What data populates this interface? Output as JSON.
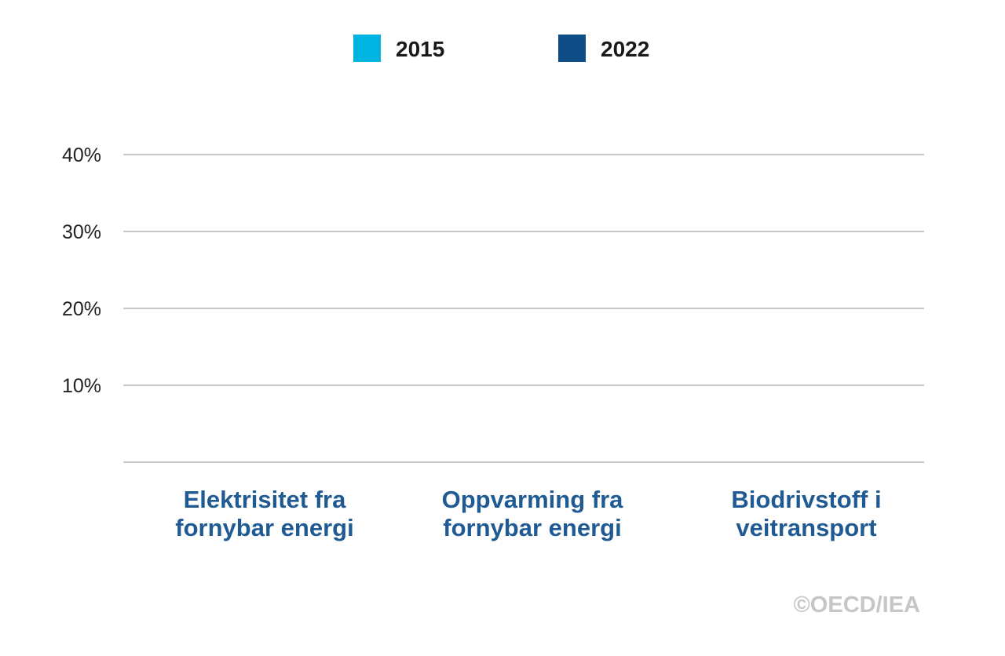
{
  "chart_data": {
    "type": "bar",
    "series": [
      {
        "name": "2015",
        "color": "#00b3e0",
        "values": [
          null,
          null,
          null
        ]
      },
      {
        "name": "2022",
        "color": "#0f4d86",
        "values": [
          null,
          null,
          null
        ]
      }
    ],
    "categories": [
      [
        "Elektrisitet fra",
        "fornybar energi"
      ],
      [
        "Oppvarming fra",
        "fornybar energi"
      ],
      [
        "Biodrivstoff i",
        "veitransport"
      ]
    ],
    "yticks": [
      {
        "value": 10,
        "label": "10%"
      },
      {
        "value": 20,
        "label": "20%"
      },
      {
        "value": 30,
        "label": "30%"
      },
      {
        "value": 40,
        "label": "40%"
      }
    ],
    "ylim": [
      0,
      40
    ],
    "grid": true,
    "legend_position": "top-center",
    "credit": "©OECD/IEA",
    "colors": {
      "category_text": "#1f5a93",
      "gridline": "#c8c8c8",
      "credit": "#c6c6c6"
    }
  }
}
